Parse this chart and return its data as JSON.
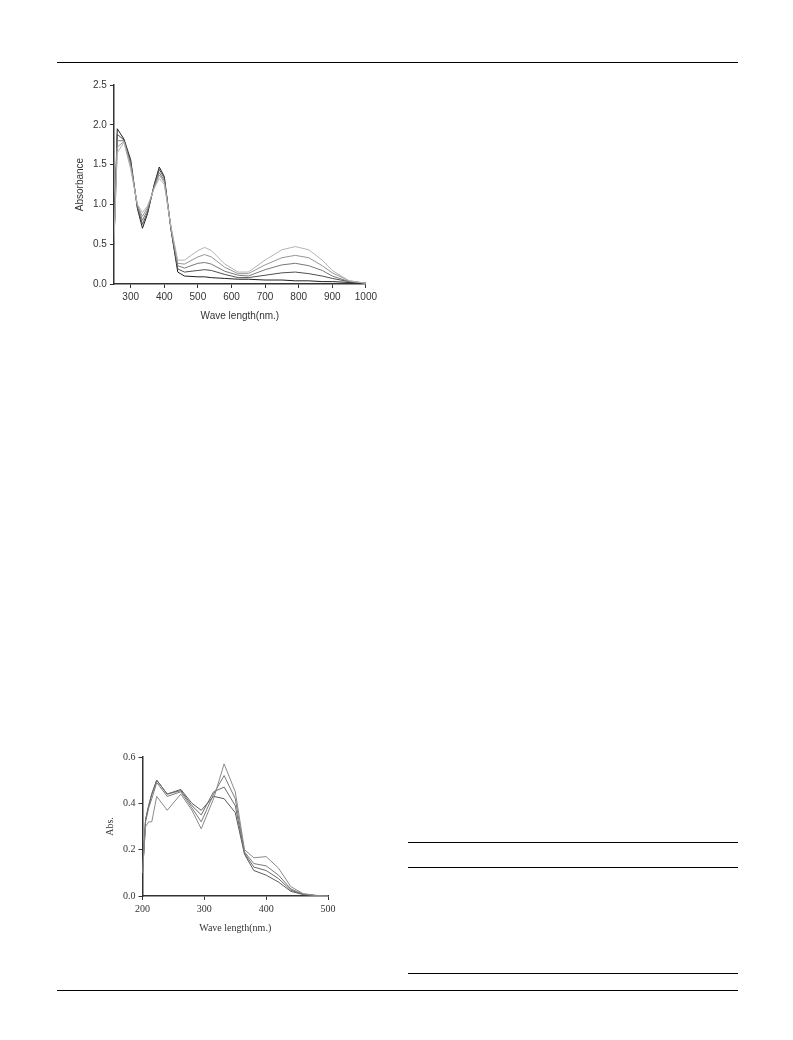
{
  "chart_data": [
    {
      "type": "line",
      "xlabel": "Wave length(nm.)",
      "ylabel": "Absorbance",
      "xlim": [
        250,
        1000
      ],
      "xticks": [
        300,
        400,
        500,
        600,
        700,
        800,
        900,
        1000
      ],
      "ylim": [
        0,
        2.5
      ],
      "yticks": [
        {
          "value": 0,
          "label": "0.0"
        },
        {
          "value": 0.5,
          "label": "0.5"
        },
        {
          "value": 1,
          "label": "1.0"
        },
        {
          "value": 1.5,
          "label": "1.5"
        },
        {
          "value": 2,
          "label": "2.0"
        },
        {
          "value": 2.5,
          "label": "2.5"
        }
      ],
      "grid": false,
      "legend": false,
      "x": [
        250,
        260,
        280,
        300,
        320,
        335,
        350,
        370,
        385,
        400,
        420,
        440,
        460,
        500,
        520,
        540,
        580,
        620,
        650,
        700,
        750,
        790,
        830,
        870,
        900,
        950,
        1000
      ],
      "series": [
        {
          "color": "#b4b4b4",
          "values": [
            0.5,
            1.65,
            1.78,
            1.44,
            1.0,
            0.9,
            0.98,
            1.2,
            1.33,
            1.25,
            0.72,
            0.3,
            0.3,
            0.42,
            0.46,
            0.42,
            0.25,
            0.15,
            0.15,
            0.3,
            0.43,
            0.47,
            0.43,
            0.3,
            0.17,
            0.04,
            0.01
          ]
        },
        {
          "color": "#969696",
          "values": [
            0.5,
            1.72,
            1.79,
            1.48,
            0.99,
            0.85,
            0.96,
            1.21,
            1.37,
            1.28,
            0.71,
            0.26,
            0.25,
            0.34,
            0.37,
            0.34,
            0.21,
            0.13,
            0.13,
            0.24,
            0.33,
            0.36,
            0.33,
            0.23,
            0.14,
            0.04,
            0.01
          ]
        },
        {
          "color": "#787878",
          "values": [
            0.5,
            1.8,
            1.8,
            1.5,
            0.98,
            0.8,
            0.93,
            1.22,
            1.4,
            1.3,
            0.7,
            0.23,
            0.2,
            0.26,
            0.27,
            0.25,
            0.16,
            0.11,
            0.1,
            0.18,
            0.24,
            0.26,
            0.23,
            0.17,
            0.1,
            0.03,
            0.01
          ]
        },
        {
          "color": "#505050",
          "values": [
            0.5,
            1.88,
            1.81,
            1.52,
            0.96,
            0.75,
            0.9,
            1.24,
            1.44,
            1.33,
            0.69,
            0.19,
            0.15,
            0.17,
            0.18,
            0.17,
            0.12,
            0.08,
            0.08,
            0.11,
            0.14,
            0.15,
            0.13,
            0.1,
            0.07,
            0.03,
            0.01
          ]
        },
        {
          "color": "#202020",
          "values": [
            0.5,
            1.95,
            1.82,
            1.56,
            0.95,
            0.7,
            0.88,
            1.25,
            1.47,
            1.35,
            0.68,
            0.15,
            0.1,
            0.09,
            0.09,
            0.08,
            0.07,
            0.06,
            0.06,
            0.05,
            0.05,
            0.04,
            0.04,
            0.03,
            0.03,
            0.02,
            0.01
          ]
        }
      ]
    },
    {
      "type": "line",
      "xlabel": "Wave length(nm.)",
      "ylabel": "Abs.",
      "xlim": [
        200,
        500
      ],
      "xticks": [
        200,
        300,
        400,
        500
      ],
      "ylim": [
        0,
        0.6
      ],
      "yticks": [
        {
          "value": 0,
          "label": "0.0"
        },
        {
          "value": 0.2,
          "label": "0.2"
        },
        {
          "value": 0.4,
          "label": "0.4"
        },
        {
          "value": 0.6,
          "label": "0.6"
        }
      ],
      "grid": false,
      "legend": false,
      "x": [
        200,
        205,
        210,
        215,
        223,
        240,
        262,
        280,
        295,
        315,
        332,
        350,
        365,
        380,
        400,
        420,
        440,
        460,
        480,
        500
      ],
      "series": [
        {
          "color": "#8a8a8a",
          "values": [
            0.1,
            0.3,
            0.32,
            0.32,
            0.43,
            0.37,
            0.44,
            0.37,
            0.29,
            0.42,
            0.57,
            0.45,
            0.2,
            0.165,
            0.17,
            0.12,
            0.04,
            0.01,
            0.003,
            0
          ]
        },
        {
          "color": "#7a7a7a",
          "values": [
            0.1,
            0.32,
            0.38,
            0.42,
            0.49,
            0.43,
            0.45,
            0.38,
            0.32,
            0.44,
            0.52,
            0.42,
            0.19,
            0.14,
            0.13,
            0.09,
            0.03,
            0.008,
            0.002,
            0
          ]
        },
        {
          "color": "#6a6a6a",
          "values": [
            0.1,
            0.33,
            0.39,
            0.44,
            0.5,
            0.44,
            0.455,
            0.39,
            0.35,
            0.45,
            0.47,
            0.39,
            0.185,
            0.125,
            0.11,
            0.075,
            0.025,
            0.007,
            0.002,
            0
          ]
        },
        {
          "color": "#5a5a5a",
          "values": [
            0.1,
            0.33,
            0.39,
            0.44,
            0.5,
            0.44,
            0.46,
            0.4,
            0.37,
            0.43,
            0.42,
            0.36,
            0.18,
            0.11,
            0.09,
            0.06,
            0.02,
            0.006,
            0.002,
            0
          ]
        }
      ]
    }
  ]
}
